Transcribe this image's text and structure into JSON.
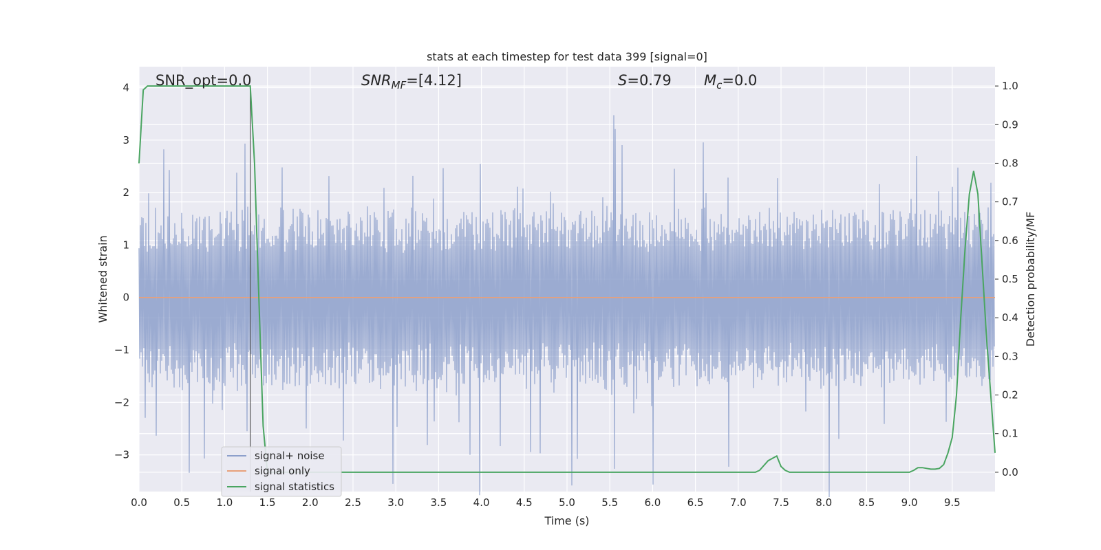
{
  "chart_data": {
    "type": "line",
    "title": "stats at each timestep for test data 399 [signal=0]",
    "xlabel": "Time (s)",
    "ylabel": "Whitened strain",
    "y2label": "Detection probability/MF",
    "xlim": [
      0.0,
      10.0
    ],
    "ylim": [
      -3.7,
      4.4
    ],
    "y2lim": [
      -0.05,
      1.05
    ],
    "x_ticks": [
      "0.0",
      "0.5",
      "1.0",
      "1.5",
      "2.0",
      "2.5",
      "3.0",
      "3.5",
      "4.0",
      "4.5",
      "5.0",
      "5.5",
      "6.0",
      "6.5",
      "7.0",
      "7.5",
      "8.0",
      "8.5",
      "9.0",
      "9.5"
    ],
    "y_ticks": [
      "4",
      "3",
      "2",
      "1",
      "0",
      "−1",
      "−2",
      "−3"
    ],
    "y2_ticks": [
      "1.0",
      "0.9",
      "0.8",
      "0.7",
      "0.6",
      "0.5",
      "0.4",
      "0.3",
      "0.2",
      "0.1",
      "0.0"
    ],
    "grid": true,
    "legend_position": "lower-left",
    "annotations": {
      "snr_opt": "SNR_opt=0.0",
      "snr_mf_main": "SNR",
      "snr_mf_sub": "MF",
      "snr_mf_value": "=[4.12]",
      "s_symbol": "S",
      "s_value": "=0.79",
      "mc_symbol": "M",
      "mc_sub": "c",
      "mc_value": "=0.0"
    },
    "marker_line_x": 1.3,
    "series": [
      {
        "name": "signal+ noise",
        "color": "#8da0cb",
        "kind": "noise",
        "envelope_typical": 1.8,
        "envelope_peak": 4.0
      },
      {
        "name": "signal only",
        "color": "#e8a07a",
        "x": [
          0.0,
          10.0
        ],
        "y": [
          0.0,
          0.0
        ]
      },
      {
        "name": "signal statistics",
        "color": "#4aa561",
        "axis": "right",
        "x": [
          0.0,
          0.05,
          0.1,
          0.2,
          0.3,
          0.4,
          0.5,
          0.6,
          0.7,
          0.8,
          0.9,
          1.0,
          1.1,
          1.2,
          1.3,
          1.35,
          1.4,
          1.45,
          1.5,
          1.6,
          2.0,
          3.0,
          4.0,
          5.0,
          6.0,
          7.0,
          7.2,
          7.25,
          7.35,
          7.45,
          7.5,
          7.55,
          7.6,
          8.0,
          8.5,
          9.0,
          9.05,
          9.1,
          9.15,
          9.2,
          9.25,
          9.3,
          9.35,
          9.4,
          9.45,
          9.5,
          9.55,
          9.6,
          9.65,
          9.7,
          9.75,
          9.8,
          9.9,
          10.0
        ],
        "y": [
          0.8,
          0.99,
          1.0,
          1.0,
          1.0,
          1.0,
          1.0,
          1.0,
          1.0,
          1.0,
          1.0,
          1.0,
          1.0,
          1.0,
          1.0,
          0.8,
          0.45,
          0.12,
          0.0,
          0.0,
          0.0,
          0.0,
          0.0,
          0.0,
          0.0,
          0.0,
          0.0,
          0.005,
          0.03,
          0.042,
          0.015,
          0.005,
          0.0,
          0.0,
          0.0,
          0.0,
          0.005,
          0.012,
          0.012,
          0.01,
          0.008,
          0.008,
          0.01,
          0.02,
          0.05,
          0.09,
          0.2,
          0.4,
          0.58,
          0.72,
          0.78,
          0.72,
          0.35,
          0.05
        ]
      }
    ]
  }
}
